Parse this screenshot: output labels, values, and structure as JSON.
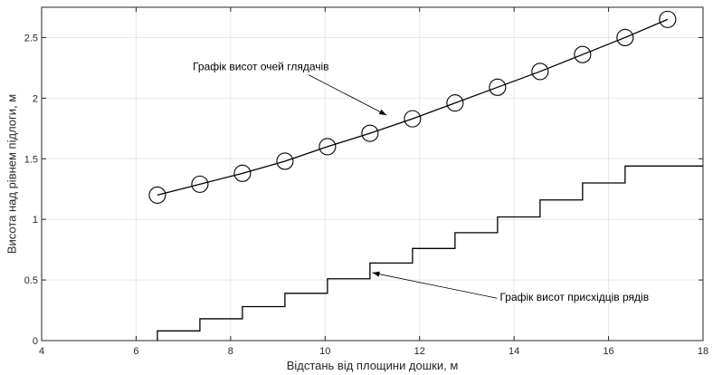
{
  "chart_data": {
    "type": "line",
    "title": "",
    "xlabel": "Відстань від площини дошки, м",
    "ylabel": "Висота над рівнем підлоги, м",
    "xlim": [
      4,
      18
    ],
    "ylim": [
      0,
      2.75
    ],
    "x_ticks": [
      {
        "value": 4,
        "label": "4"
      },
      {
        "value": 6,
        "label": "6"
      },
      {
        "value": 8,
        "label": "8"
      },
      {
        "value": 10,
        "label": "10"
      },
      {
        "value": 12,
        "label": "12"
      },
      {
        "value": 14,
        "label": "14"
      },
      {
        "value": 16,
        "label": "16"
      },
      {
        "value": 18,
        "label": "18"
      }
    ],
    "y_ticks": [
      {
        "value": 0,
        "label": "0"
      },
      {
        "value": 0.5,
        "label": "0.5"
      },
      {
        "value": 1,
        "label": "1"
      },
      {
        "value": 1.5,
        "label": "1.5"
      },
      {
        "value": 2,
        "label": "2"
      },
      {
        "value": 2.5,
        "label": "2.5"
      }
    ],
    "grid": true,
    "colors": {
      "line": "#000000",
      "grid": "#e6e6e6",
      "axes": "#262626"
    },
    "series": [
      {
        "style": "line-with-circle-markers",
        "x": [
          6.45,
          7.35,
          8.25,
          9.15,
          10.05,
          10.95,
          11.85,
          12.75,
          13.65,
          14.55,
          15.45,
          16.35,
          17.25
        ],
        "y": [
          1.2,
          1.29,
          1.38,
          1.48,
          1.6,
          1.71,
          1.83,
          1.96,
          2.09,
          2.22,
          2.36,
          2.5,
          2.65
        ]
      },
      {
        "style": "stairs",
        "x": [
          6.45,
          7.35,
          8.25,
          9.15,
          10.05,
          10.95,
          11.85,
          12.75,
          13.65,
          14.55,
          15.45,
          16.35,
          18
        ],
        "y": [
          0,
          0.08,
          0.18,
          0.28,
          0.39,
          0.51,
          0.64,
          0.76,
          0.89,
          1.02,
          1.16,
          1.3,
          1.44
        ]
      }
    ],
    "annotations": [
      {
        "text": "Графік висот очей глядачів",
        "text_x": 7.2,
        "text_y": 2.23,
        "arrow_to_x": 11.3,
        "arrow_to_y": 1.86
      },
      {
        "text": "Графік висот присхідців рядів",
        "text_x": 13.7,
        "text_y": 0.33,
        "arrow_to_x": 11.0,
        "arrow_to_y": 0.56
      }
    ]
  }
}
